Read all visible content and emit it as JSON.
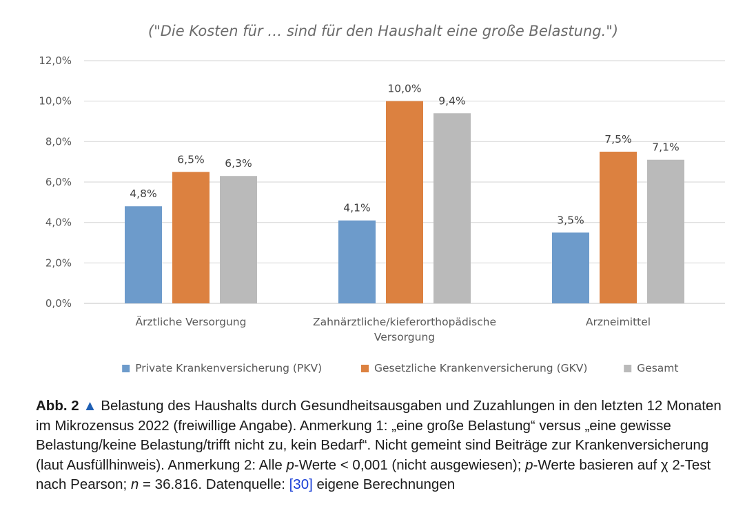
{
  "chart_data": {
    "type": "bar",
    "title": "(\"Die Kosten für … sind für den Haushalt eine große Belastung.\")",
    "xlabel": "",
    "ylabel": "",
    "ylim": [
      0,
      12
    ],
    "yticks": [
      0,
      2,
      4,
      6,
      8,
      10,
      12
    ],
    "ytick_labels": [
      "0,0%",
      "2,0%",
      "4,0%",
      "6,0%",
      "8,0%",
      "10,0%",
      "12,0%"
    ],
    "grid": true,
    "legend_position": "bottom",
    "categories": [
      [
        "Ärztliche Versorgung"
      ],
      [
        "Zahnärztliche/kieferorthopädische",
        "Versorgung"
      ],
      [
        "Arzneimittel"
      ]
    ],
    "series": [
      {
        "name": "Private Krankenversicherung (PKV)",
        "color": "#6d9bcb",
        "values": [
          4.8,
          4.1,
          3.5
        ],
        "labels": [
          "4,8%",
          "4,1%",
          "3,5%"
        ]
      },
      {
        "name": "Gesetzliche Krankenversicherung (GKV)",
        "color": "#dc8140",
        "values": [
          6.5,
          10.0,
          7.5
        ],
        "labels": [
          "6,5%",
          "10,0%",
          "7,5%"
        ]
      },
      {
        "name": "Gesamt",
        "color": "#bababa",
        "values": [
          6.3,
          9.4,
          7.1
        ],
        "labels": [
          "6,3%",
          "9,4%",
          "7,1%"
        ]
      }
    ]
  },
  "caption": {
    "label": "Abb. 2",
    "marker": "▲",
    "text_1": "Belastung des Haushalts durch Gesundheitsausgaben und Zuzahlungen in den letzten 12 Monaten im Mikrozensus 2022 (freiwillige Angabe). Anmerkung 1: „eine große Belastung“ versus „eine gewisse Belastung/keine Belastung/trifft nicht zu, kein Bedarf“. Nicht gemeint sind Beiträge zur Krankenversicherung (laut Ausfüllhinweis). Anmerkung 2: Alle",
    "p1": "p",
    "text_2": "-Werte < 0,001 (nicht ausgewiesen);",
    "p2": "p",
    "text_3": "-Werte basieren auf χ 2-Test nach Pearson;",
    "n": "n",
    "text_4": "= 36.816. Datenquelle:",
    "ref": "[30]",
    "text_5": "eigene Berechnungen"
  }
}
